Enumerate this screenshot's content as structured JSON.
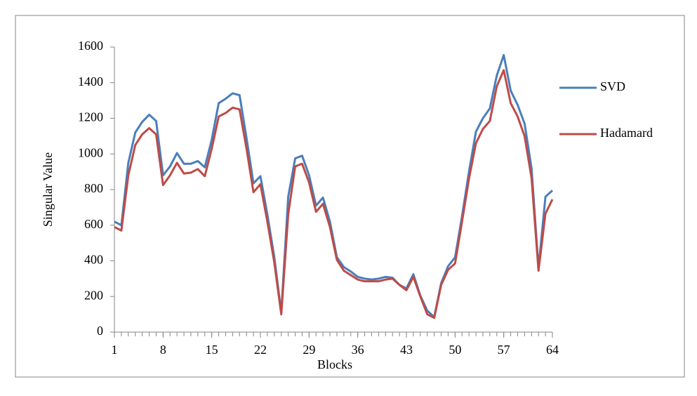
{
  "chart_data": {
    "type": "line",
    "x_label": "Blocks",
    "y_label": "Singular Value",
    "x": [
      1,
      2,
      3,
      4,
      5,
      6,
      7,
      8,
      9,
      10,
      11,
      12,
      13,
      14,
      15,
      16,
      17,
      18,
      19,
      20,
      21,
      22,
      23,
      24,
      25,
      26,
      27,
      28,
      29,
      30,
      31,
      32,
      33,
      34,
      35,
      36,
      37,
      38,
      39,
      40,
      41,
      42,
      43,
      44,
      45,
      46,
      47,
      48,
      49,
      50,
      51,
      52,
      53,
      54,
      55,
      56,
      57,
      58,
      59,
      60,
      61,
      62,
      63,
      64
    ],
    "xlim": [
      1,
      64
    ],
    "xticks": [
      1,
      8,
      15,
      22,
      29,
      36,
      43,
      50,
      57,
      64
    ],
    "ylim": [
      0,
      1600
    ],
    "yticks": [
      0,
      200,
      400,
      600,
      800,
      1000,
      1200,
      1400,
      1600
    ],
    "grid": false,
    "legend": "right",
    "series": [
      {
        "name": "SVD",
        "color": "#4a7ebb",
        "values": [
          620,
          600,
          950,
          1120,
          1180,
          1220,
          1185,
          880,
          930,
          1005,
          945,
          945,
          960,
          925,
          1080,
          1285,
          1310,
          1340,
          1330,
          1090,
          835,
          875,
          660,
          420,
          110,
          760,
          975,
          990,
          880,
          710,
          755,
          620,
          420,
          365,
          340,
          310,
          300,
          295,
          300,
          310,
          305,
          265,
          245,
          325,
          205,
          120,
          85,
          275,
          370,
          420,
          650,
          900,
          1125,
          1200,
          1255,
          1440,
          1555,
          1355,
          1275,
          1170,
          920,
          360,
          760,
          795
        ]
      },
      {
        "name": "Hadamard",
        "color": "#be4b48",
        "values": [
          590,
          570,
          880,
          1050,
          1110,
          1145,
          1110,
          825,
          880,
          950,
          890,
          895,
          915,
          875,
          1030,
          1210,
          1230,
          1260,
          1250,
          1030,
          785,
          830,
          620,
          390,
          100,
          660,
          930,
          945,
          840,
          675,
          720,
          590,
          405,
          345,
          320,
          295,
          285,
          285,
          285,
          295,
          300,
          265,
          235,
          310,
          200,
          100,
          80,
          265,
          350,
          385,
          620,
          860,
          1060,
          1140,
          1185,
          1380,
          1470,
          1285,
          1210,
          1100,
          865,
          345,
          665,
          745
        ]
      }
    ]
  }
}
